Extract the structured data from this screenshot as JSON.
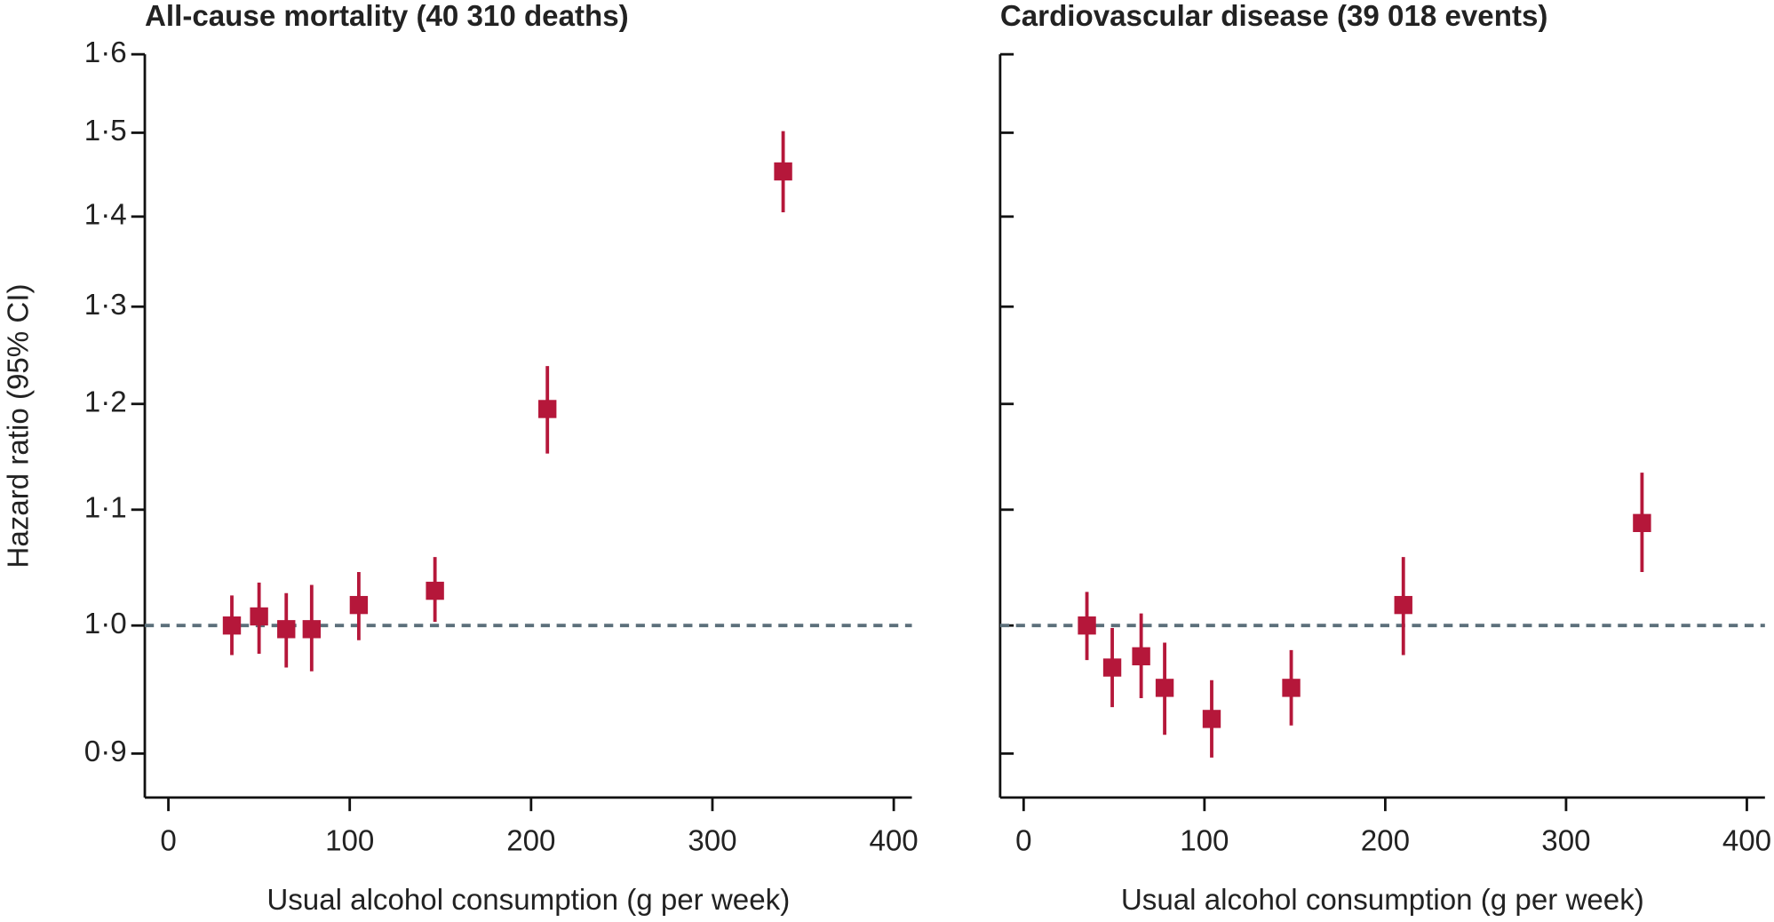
{
  "chart_data": [
    {
      "type": "scatter",
      "title": "All-cause mortality (40 310 deaths)",
      "xlabel": "Usual alcohol consumption (g per week)",
      "ylabel": "Hazard ratio (95% CI)",
      "log_y": true,
      "reference_line": 1.0,
      "color": "#b5173a",
      "x": [
        35,
        50,
        65,
        79,
        105,
        147,
        209,
        339
      ],
      "values": [
        1.0,
        1.0075,
        0.997,
        0.997,
        1.017,
        1.029,
        1.195,
        1.453
      ],
      "lower": [
        0.976,
        0.977,
        0.966,
        0.963,
        0.988,
        1.003,
        1.152,
        1.405
      ],
      "upper": [
        1.025,
        1.036,
        1.027,
        1.034,
        1.045,
        1.058,
        1.238,
        1.502
      ],
      "xlim": [
        -13,
        410
      ],
      "xticks": [
        0,
        100,
        200,
        300,
        400
      ],
      "ylim": [
        0.868,
        1.6
      ],
      "yticks": [
        {
          "value": 0.9,
          "label": "0·9"
        },
        {
          "value": 1.0,
          "label": "1·0"
        },
        {
          "value": 1.1,
          "label": "1·1"
        },
        {
          "value": 1.2,
          "label": "1·2"
        },
        {
          "value": 1.3,
          "label": "1·3"
        },
        {
          "value": 1.4,
          "label": "1·4"
        },
        {
          "value": 1.5,
          "label": "1·5"
        },
        {
          "value": 1.6,
          "label": "1·6"
        }
      ]
    },
    {
      "type": "scatter",
      "title": "Cardiovascular disease (39 018 events)",
      "xlabel": "Usual alcohol consumption (g per week)",
      "log_y": true,
      "reference_line": 1.0,
      "color": "#b5173a",
      "x": [
        35,
        49,
        65,
        78,
        104,
        148,
        210,
        342
      ],
      "values": [
        1.0,
        0.966,
        0.975,
        0.95,
        0.926,
        0.95,
        1.017,
        1.088
      ],
      "lower": [
        0.972,
        0.935,
        0.942,
        0.914,
        0.897,
        0.921,
        0.976,
        1.045
      ],
      "upper": [
        1.028,
        0.998,
        1.01,
        0.986,
        0.956,
        0.98,
        1.058,
        1.134
      ],
      "xlim": [
        -13,
        410
      ],
      "xticks": [
        0,
        100,
        200,
        300,
        400
      ],
      "ylim": [
        0.868,
        1.6
      ],
      "yticks": [
        0.9,
        1.0,
        1.1,
        1.2,
        1.3,
        1.4,
        1.5,
        1.6
      ]
    }
  ]
}
